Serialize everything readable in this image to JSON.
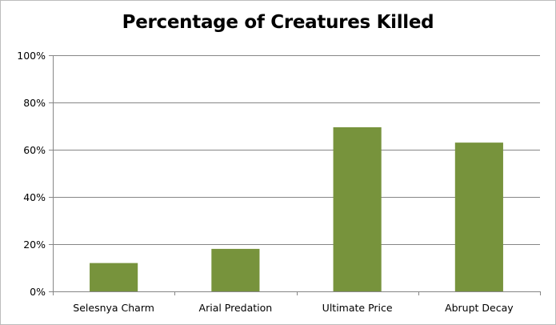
{
  "chart_data": {
    "type": "bar",
    "title": "Percentage of Creatures Killed",
    "xlabel": "",
    "ylabel": "",
    "categories": [
      "Selesnya Charm",
      "Arial Predation",
      "Ultimate Price",
      "Abrupt Decay"
    ],
    "values": [
      12,
      18,
      69.5,
      63
    ],
    "ylim": [
      0,
      100
    ],
    "yticks": [
      "0%",
      "20%",
      "40%",
      "60%",
      "80%",
      "100%"
    ],
    "grid": true,
    "legend": "none",
    "colors": {
      "bar": "#77933C",
      "grid": "#868686",
      "axis": "#868686"
    }
  }
}
